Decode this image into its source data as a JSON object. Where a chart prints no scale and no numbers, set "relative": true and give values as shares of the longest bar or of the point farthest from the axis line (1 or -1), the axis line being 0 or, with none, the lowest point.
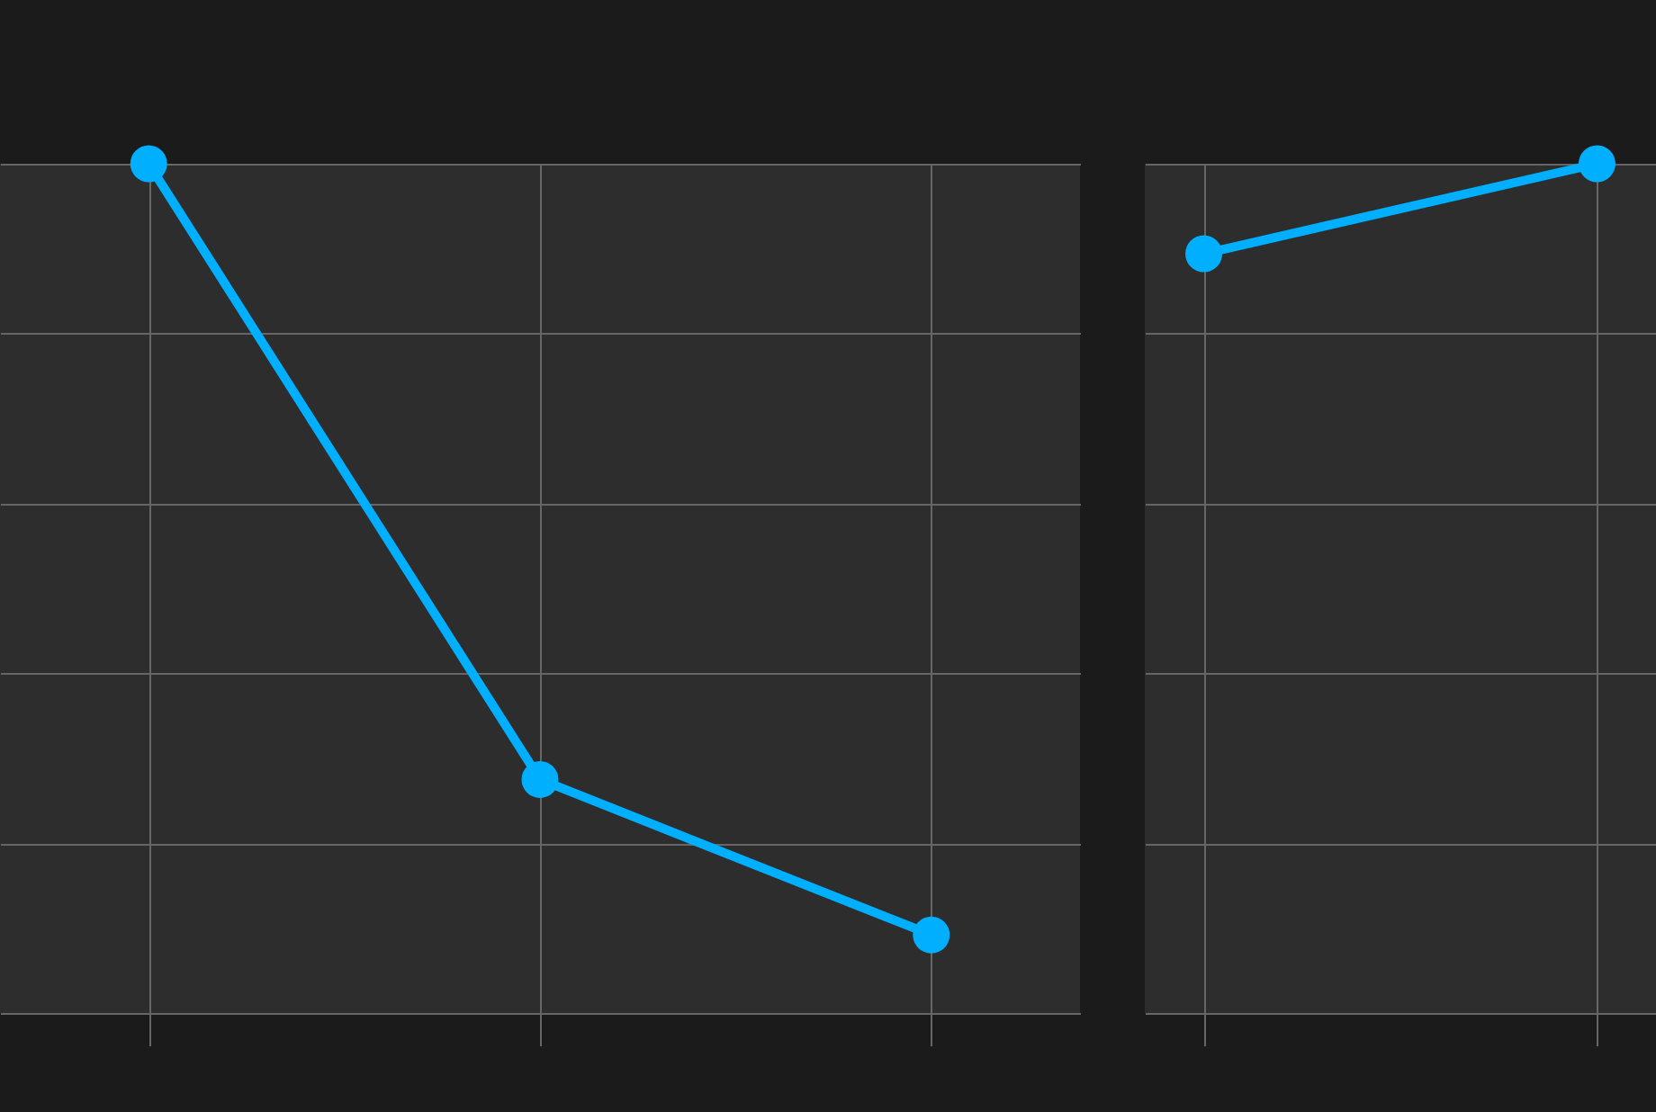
{
  "chart_data": [
    {
      "type": "line",
      "categories": [
        null,
        null,
        null
      ],
      "values": [
        1,
        0.275,
        0.092
      ],
      "relative": true,
      "color": "#00b0ff",
      "marker": "circle",
      "grid": true
    },
    {
      "type": "line",
      "categories": [
        null,
        null
      ],
      "values": [
        0.894,
        1
      ],
      "relative": true,
      "color": "#00b0ff",
      "marker": "circle",
      "grid": true
    }
  ]
}
